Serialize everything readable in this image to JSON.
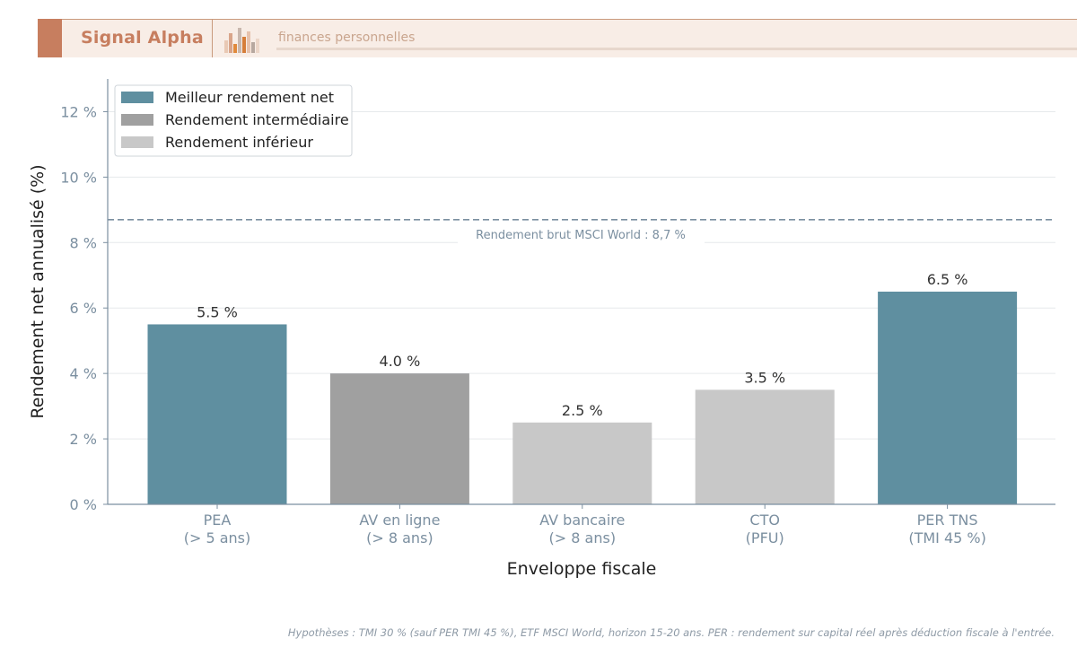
{
  "header": {
    "brand": "Signal Alpha",
    "tagline": "finances personnelles"
  },
  "colors": {
    "best": "#5f8fa0",
    "intermediate": "#a0a0a0",
    "lower": "#c8c8c8",
    "reference_line": "#7b8fa0",
    "header_accent": "#c77e5f"
  },
  "chart_data": {
    "type": "bar",
    "categories": [
      [
        "PEA",
        "(> 5 ans)"
      ],
      [
        "AV en ligne",
        "(> 8 ans)"
      ],
      [
        "AV bancaire",
        "(> 8 ans)"
      ],
      [
        "CTO",
        "(PFU)"
      ],
      [
        "PER TNS",
        "(TMI 45 %)"
      ]
    ],
    "values": [
      5.5,
      4.0,
      2.5,
      3.5,
      6.5
    ],
    "value_labels": [
      "5.5 %",
      "4.0 %",
      "2.5 %",
      "3.5 %",
      "6.5 %"
    ],
    "tiers": [
      "best",
      "intermediate",
      "lower",
      "lower",
      "best"
    ],
    "xlabel": "Enveloppe fiscale",
    "ylabel": "Rendement net annualisé (%)",
    "ylim": [
      0,
      13
    ],
    "yticks": [
      0,
      2,
      4,
      6,
      8,
      10,
      12
    ],
    "ytick_labels": [
      "0 %",
      "2 %",
      "4 %",
      "6 %",
      "8 %",
      "10 %",
      "12 %"
    ],
    "grid": true,
    "legend": {
      "placement": "top-left",
      "entries": [
        {
          "tier": "best",
          "label": "Meilleur rendement net"
        },
        {
          "tier": "intermediate",
          "label": "Rendement intermédiaire"
        },
        {
          "tier": "lower",
          "label": "Rendement inférieur"
        }
      ]
    },
    "reference_line": {
      "value": 8.7,
      "label": "Rendement brut MSCI World : 8,7 %",
      "style": "dashed"
    }
  },
  "footnote": "Hypothèses : TMI 30 % (sauf PER TMI 45 %), ETF MSCI World, horizon 15-20 ans. PER : rendement sur capital réel après déduction fiscale à l'entrée."
}
